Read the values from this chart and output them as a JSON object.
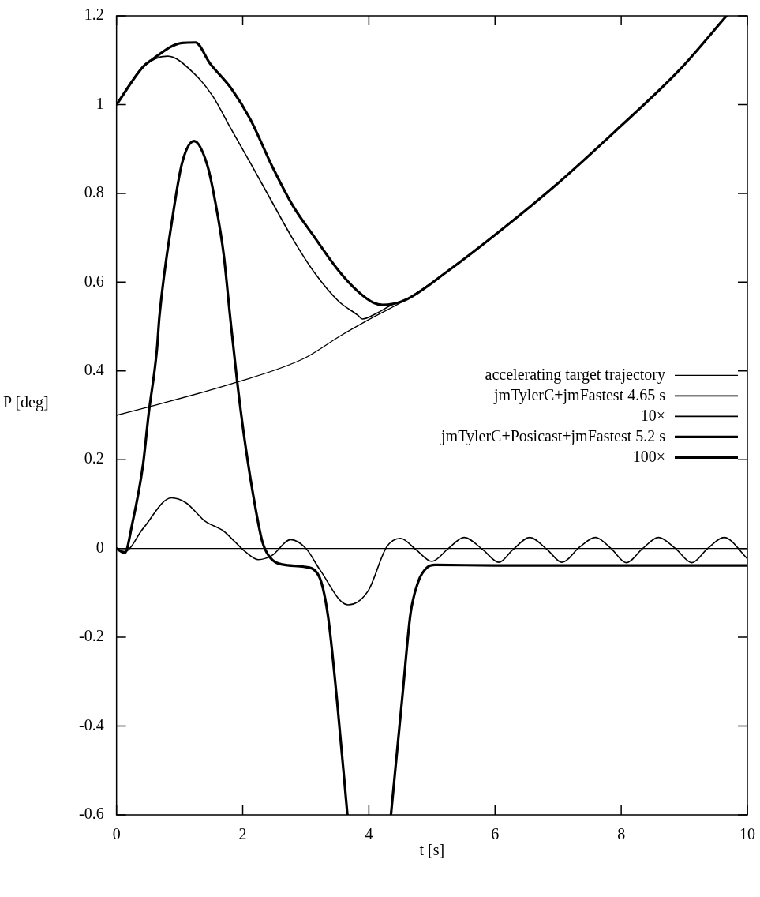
{
  "chart_data": {
    "type": "line",
    "xlabel": "t [s]",
    "ylabel": "P [deg]",
    "xlim": [
      0,
      10
    ],
    "xticks": [
      0,
      2,
      4,
      6,
      8,
      10
    ],
    "ylim": [
      -0.6,
      1.2
    ],
    "yticks": [
      -0.6,
      -0.4,
      -0.2,
      0,
      0.2,
      0.4,
      0.6,
      0.8,
      1,
      1.2
    ],
    "legend": "right",
    "marker": "none",
    "line_style": "solid",
    "ref_lines": [
      {
        "axis": "y",
        "value": 0,
        "color": "#000000"
      }
    ],
    "series": [
      {
        "name": "accelerating target trajectory",
        "color": "#000000",
        "x": [
          0,
          0.51,
          1.87,
          2.97,
          3.56,
          4.03,
          4.58,
          5.26,
          6.11,
          6.95,
          7.89,
          8.91,
          9.67
        ],
        "values": [
          0.3,
          0.319,
          0.373,
          0.428,
          0.48,
          0.518,
          0.56,
          0.626,
          0.719,
          0.817,
          0.938,
          1.076,
          1.2
        ]
      },
      {
        "name": "jmTylerC+jmFastest 4.65 s",
        "color": "#000000",
        "x": [
          0,
          0.42,
          0.81,
          1.23,
          1.53,
          1.82,
          2.12,
          2.46,
          2.8,
          3.14,
          3.52,
          3.82,
          3.9,
          4.11,
          4.41,
          4.58,
          5.26,
          6.11,
          6.95,
          7.89,
          8.91,
          9.67
        ],
        "values": [
          1.0,
          1.085,
          1.109,
          1.07,
          1.018,
          0.944,
          0.869,
          0.782,
          0.696,
          0.621,
          0.557,
          0.526,
          0.517,
          0.529,
          0.552,
          0.56,
          0.626,
          0.719,
          0.817,
          0.938,
          1.076,
          1.2
        ]
      },
      {
        "name": "10×",
        "color": "#000000",
        "x": [
          0,
          0.13,
          0.42,
          0.87,
          1.1,
          1.4,
          1.7,
          1.87,
          2.04,
          2.25,
          2.46,
          2.76,
          3.01,
          3.22,
          3.67,
          3.99,
          4.28,
          4.5,
          4.75,
          5.0,
          5.26,
          5.51,
          5.81,
          6.06,
          6.28,
          6.55,
          6.83,
          7.06,
          7.34,
          7.59,
          7.84,
          8.08,
          8.34,
          8.59,
          8.86,
          9.12,
          9.37,
          9.63,
          10
        ],
        "values": [
          0,
          -0.007,
          0.045,
          0.114,
          0.103,
          0.062,
          0.039,
          0.016,
          -0.007,
          -0.025,
          -0.016,
          0.02,
          -0.001,
          -0.047,
          -0.127,
          -0.095,
          0.003,
          0.023,
          -0.003,
          -0.029,
          0,
          0.025,
          -0.003,
          -0.031,
          -0.003,
          0.025,
          -0.003,
          -0.031,
          0.003,
          0.025,
          0,
          -0.032,
          0,
          0.025,
          0,
          -0.032,
          0,
          0.025,
          -0.023
        ]
      },
      {
        "name": "jmTylerC+Posicast+jmFastest 5.2 s",
        "color": "#000000",
        "x": [
          0,
          0.42,
          0.55,
          1.04,
          1.25,
          1.48,
          1.82,
          2.12,
          2.46,
          2.8,
          3.14,
          3.52,
          3.82,
          4.07,
          4.22,
          4.58,
          5.26,
          6.11,
          6.95,
          7.89,
          8.91,
          9.67
        ],
        "values": [
          1.0,
          1.085,
          1.1,
          1.139,
          1.14,
          1.093,
          1.036,
          0.967,
          0.863,
          0.771,
          0.701,
          0.626,
          0.58,
          0.554,
          0.549,
          0.56,
          0.626,
          0.719,
          0.817,
          0.938,
          1.076,
          1.2
        ]
      },
      {
        "name": "100×",
        "color": "#000000",
        "x": [
          0,
          0.13,
          0.25,
          0.42,
          0.51,
          0.64,
          0.68,
          0.89,
          1.04,
          1.23,
          1.44,
          1.57,
          1.7,
          1.8,
          1.91,
          2.04,
          2.21,
          2.31,
          2.42,
          2.63,
          2.97,
          3.2,
          3.35,
          3.5,
          3.66,
          4.0,
          4.35,
          4.54,
          4.66,
          4.79,
          4.92,
          5.05,
          6,
          7,
          8,
          9,
          10
        ],
        "values": [
          0,
          -0.01,
          0.056,
          0.189,
          0.304,
          0.448,
          0.523,
          0.748,
          0.869,
          0.918,
          0.863,
          0.777,
          0.661,
          0.523,
          0.379,
          0.235,
          0.085,
          0.016,
          -0.018,
          -0.036,
          -0.041,
          -0.06,
          -0.15,
          -0.35,
          -0.6,
          null,
          -0.6,
          -0.32,
          -0.147,
          -0.072,
          -0.043,
          -0.037,
          -0.038,
          -0.038,
          -0.038,
          -0.038,
          -0.038
        ]
      }
    ]
  }
}
